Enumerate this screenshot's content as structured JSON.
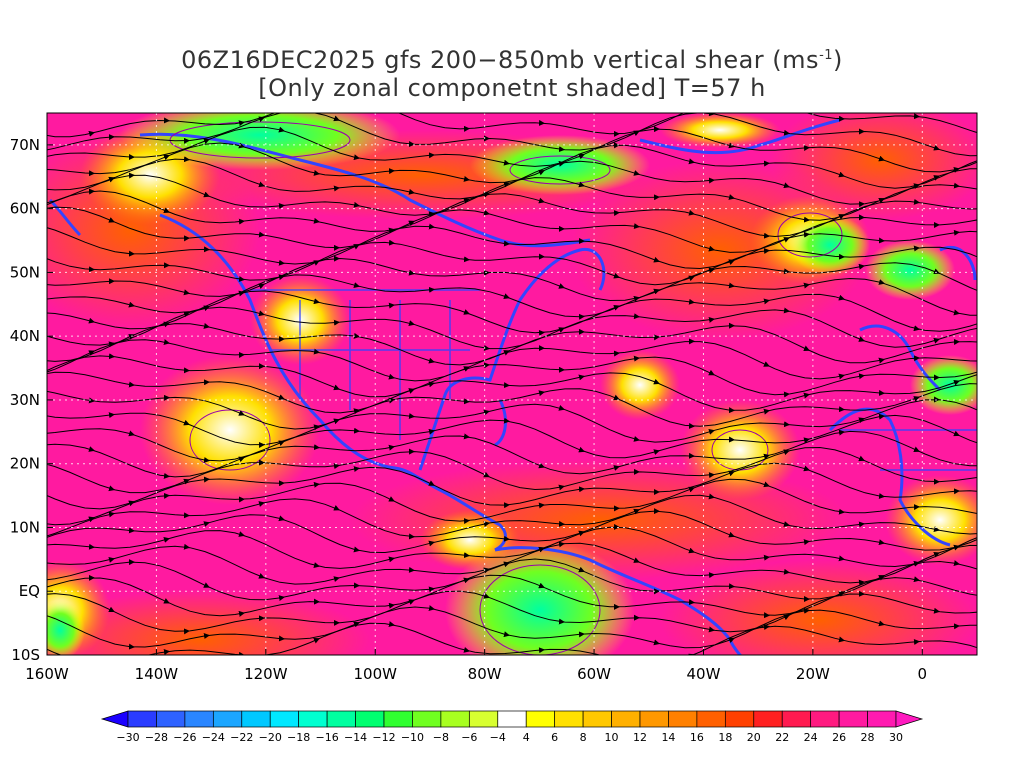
{
  "title": {
    "line1_prefix": "06Z16DEC2025 gfs 200−850mb vertical shear (ms",
    "line1_sup": "-1",
    "line1_suffix": ")",
    "line2": "[Only zonal componetnt shaded] T=57 h"
  },
  "map": {
    "lon_range": [
      -160,
      10
    ],
    "lat_range": [
      -10,
      75
    ],
    "lon_ticks": [
      "160W",
      "140W",
      "120W",
      "100W",
      "80W",
      "60W",
      "40W",
      "20W",
      "0"
    ],
    "lat_ticks": [
      "10S",
      "EQ",
      "10N",
      "20N",
      "30N",
      "40N",
      "50N",
      "60N",
      "70N"
    ],
    "field": "200-850mb vertical shear, zonal component shaded, streamlines overlaid",
    "coast_color": "#3344ff",
    "contour_color": "#9900aa"
  },
  "colorbar": {
    "labels": [
      "-30",
      "-28",
      "-26",
      "-24",
      "-22",
      "-20",
      "-18",
      "-16",
      "-14",
      "-12",
      "-10",
      "-8",
      "-6",
      "-4",
      "4",
      "6",
      "8",
      "10",
      "12",
      "14",
      "16",
      "18",
      "20",
      "22",
      "24",
      "26",
      "28",
      "30"
    ],
    "colors": [
      "#1b00ff",
      "#2a3cff",
      "#2e62ff",
      "#2a86ff",
      "#1ca6ff",
      "#00c8ff",
      "#00e8ff",
      "#00ffd0",
      "#00ffa0",
      "#00ff70",
      "#30ff30",
      "#70ff20",
      "#a8ff20",
      "#d8ff30",
      "#ffffff",
      "#ffff00",
      "#ffe000",
      "#ffc800",
      "#ffb000",
      "#ff9800",
      "#ff8000",
      "#ff6000",
      "#ff4000",
      "#ff2020",
      "#ff1a50",
      "#ff1a80",
      "#ff1aa0",
      "#ff1ab0",
      "#ff1ac0"
    ]
  }
}
